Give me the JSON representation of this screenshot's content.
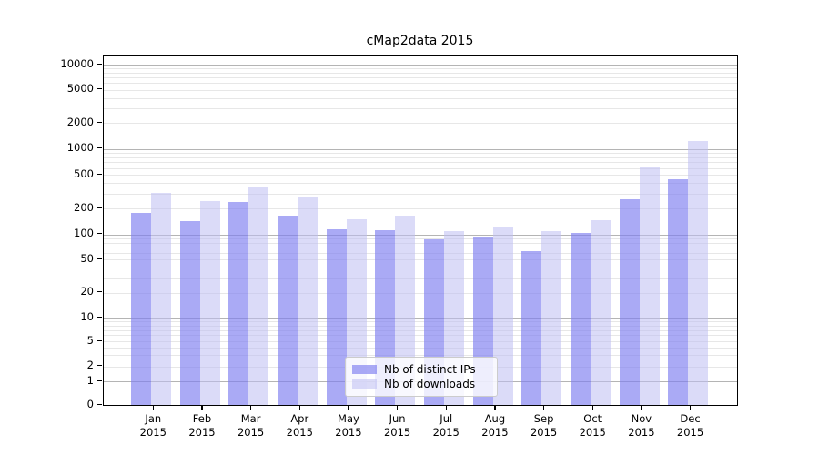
{
  "chart_data": {
    "type": "bar",
    "title": "cMap2data 2015",
    "categories": [
      "Jan 2015",
      "Feb 2015",
      "Mar 2015",
      "Apr 2015",
      "May 2015",
      "Jun 2015",
      "Jul 2015",
      "Aug 2015",
      "Sep 2015",
      "Oct 2015",
      "Nov 2015",
      "Dec 2015"
    ],
    "x_tick_months": [
      "Jan",
      "Feb",
      "Mar",
      "Apr",
      "May",
      "Jun",
      "Jul",
      "Aug",
      "Sep",
      "Oct",
      "Nov",
      "Dec"
    ],
    "x_tick_year": "2015",
    "series": [
      {
        "name": "Nb of distinct IPs",
        "color": "#7c7cf0",
        "alpha": 0.65,
        "values": [
          180,
          142,
          240,
          167,
          114,
          112,
          88,
          95,
          63,
          104,
          258,
          445
        ]
      },
      {
        "name": "Nb of downloads",
        "color": "#bebef2",
        "alpha": 0.55,
        "values": [
          305,
          248,
          358,
          280,
          149,
          164,
          110,
          121,
          110,
          148,
          620,
          1240
        ]
      }
    ],
    "y_scale": "symlog",
    "y_ticks": [
      0,
      1,
      2,
      5,
      10,
      20,
      50,
      100,
      200,
      500,
      1000,
      2000,
      5000,
      10000
    ],
    "ylim": [
      0,
      13000
    ],
    "grid": true,
    "grid_major_color": "#b4b4b4",
    "grid_minor_color": "#e7e7e7",
    "legend_position": "lower center",
    "axis_color": "#000000",
    "background_color": "#ffffff"
  }
}
